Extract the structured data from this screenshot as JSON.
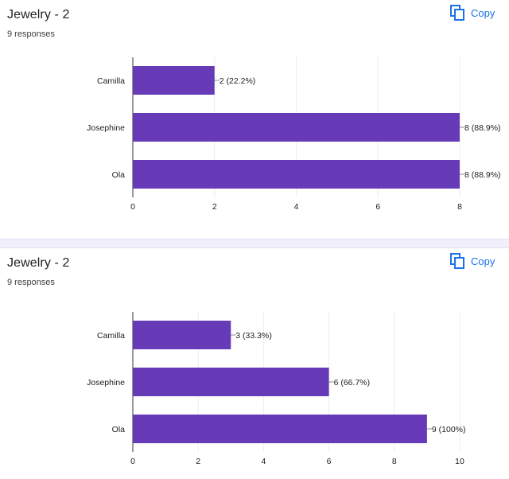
{
  "copy_label": "Copy",
  "icons": {
    "copy": "copy-icon"
  },
  "colors": {
    "bar": "#673ab7",
    "accent": "#1a73e8",
    "grid": "#ececf3"
  },
  "chart_data": [
    {
      "type": "bar",
      "orientation": "horizontal",
      "title": "Jewelry - 2",
      "subtitle": "9 responses",
      "categories": [
        "Camilla",
        "Josephine",
        "Ola"
      ],
      "values": [
        2,
        8,
        8
      ],
      "value_labels": [
        "2 (22.2%)",
        "8 (88.9%)",
        "8 (88.9%)"
      ],
      "xlim": [
        0,
        8
      ],
      "xticks": [
        0,
        2,
        4,
        6,
        8
      ],
      "xlabel": "",
      "ylabel": "",
      "grid": true,
      "legend": "none"
    },
    {
      "type": "bar",
      "orientation": "horizontal",
      "title": "Jewelry - 2",
      "subtitle": "9 responses",
      "categories": [
        "Camilla",
        "Josephine",
        "Ola"
      ],
      "values": [
        3,
        6,
        9
      ],
      "value_labels": [
        "3 (33.3%)",
        "6 (66.7%)",
        "9 (100%)"
      ],
      "xlim": [
        0,
        10
      ],
      "xticks": [
        0,
        2,
        4,
        6,
        8,
        10
      ],
      "xlabel": "",
      "ylabel": "",
      "grid": true,
      "legend": "none"
    }
  ]
}
